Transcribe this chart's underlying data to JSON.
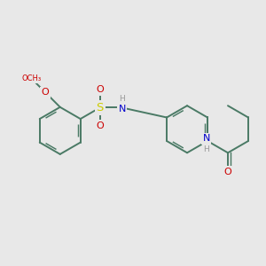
{
  "background_color": "#e8e8e8",
  "bond_color": "#4a7a65",
  "bond_width": 1.4,
  "dbo": 0.048,
  "atom_colors": {
    "N": "#0000cc",
    "O": "#cc0000",
    "S": "#cccc00",
    "H": "#999999"
  },
  "font_size": 8.0,
  "figsize": [
    3.0,
    3.0
  ],
  "dpi": 100,
  "xlim": [
    -2.8,
    2.8
  ],
  "ylim": [
    -1.8,
    1.8
  ]
}
